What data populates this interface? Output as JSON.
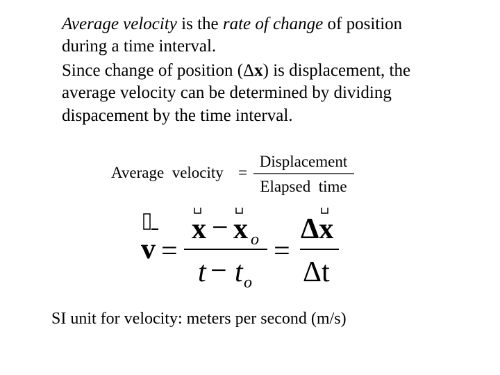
{
  "body": {
    "paragraphs": [
      {
        "lines": [
          {
            "runs": [
              {
                "text": "Average velocity",
                "italic": true
              },
              {
                "text": " is the "
              },
              {
                "text": "rate of change",
                "italic": true
              },
              {
                "text": " of position"
              }
            ]
          },
          {
            "runs": [
              {
                "text": "during a time interval."
              }
            ]
          }
        ]
      },
      {
        "lines": [
          {
            "runs": [
              {
                "text": "Since change of position (Δ"
              },
              {
                "text": "x",
                "bold": true
              },
              {
                "text": ") is displacement, the"
              }
            ]
          },
          {
            "runs": [
              {
                "text": "average velocity can be determined by dividing"
              }
            ]
          },
          {
            "runs": [
              {
                "text": "dispacement by the time interval."
              }
            ]
          }
        ]
      }
    ],
    "equation_1": {
      "lhs": "Average  velocity",
      "equals": "=",
      "numerator": "Displacement",
      "denominator": "Elapsed  time"
    },
    "equation_2": {
      "lhs": "v",
      "equals_1": "=",
      "numerator": {
        "x": "x",
        "minus": "−",
        "x0": "x",
        "sub": "o"
      },
      "denominator": {
        "t": "t",
        "minus": "−",
        "t0": "t",
        "sub": "o"
      },
      "equals_2": "=",
      "numerator_2": "Δx",
      "denominator_2": "Δt"
    },
    "footer": "SI unit for velocity: meters per second (m/s)"
  }
}
